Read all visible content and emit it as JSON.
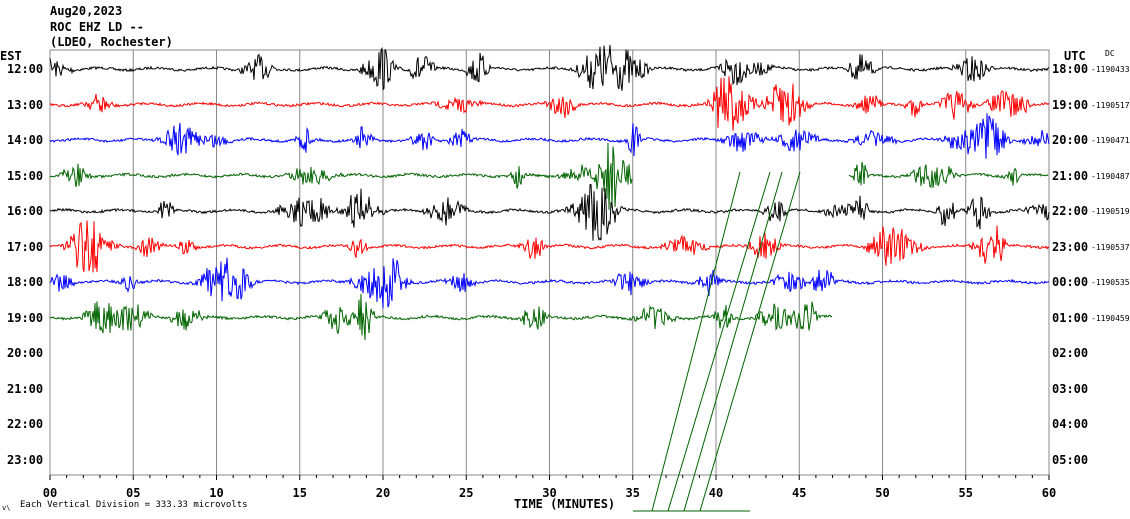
{
  "header": {
    "date": "Aug20,2023",
    "station": "ROC EHZ LD --",
    "network": "(LDEO, Rochester)"
  },
  "left_tz": "EST",
  "right_tz": "UTC",
  "dc_label": "DC",
  "footer": {
    "scale_text": "Each Vertical Division =  333.33 microvolts",
    "corner_mark": "v\\",
    "xlabel": "TIME (MINUTES)"
  },
  "chart_data": {
    "type": "line",
    "title": "ROC EHZ LD -- Aug20,2023",
    "xlabel": "TIME (MINUTES)",
    "xlim": [
      0,
      60
    ],
    "x_ticks": [
      "00",
      "05",
      "10",
      "15",
      "20",
      "25",
      "30",
      "35",
      "40",
      "45",
      "50",
      "55",
      "60"
    ],
    "grid": true,
    "colors": [
      "#000000",
      "#ff0000",
      "#0000ff",
      "#006400"
    ],
    "rows": [
      {
        "est": "12:00",
        "utc": "18:00",
        "dc": "-1190433",
        "end_min": 60
      },
      {
        "est": "13:00",
        "utc": "19:00",
        "dc": "-1190517",
        "end_min": 60
      },
      {
        "est": "14:00",
        "utc": "20:00",
        "dc": "-1190471",
        "end_min": 60
      },
      {
        "est": "15:00",
        "utc": "21:00",
        "dc": "-1190487",
        "end_min": 60,
        "gap": [
          35,
          48
        ]
      },
      {
        "est": "16:00",
        "utc": "22:00",
        "dc": "-1190519",
        "end_min": 60
      },
      {
        "est": "17:00",
        "utc": "23:00",
        "dc": "-1190537",
        "end_min": 60
      },
      {
        "est": "18:00",
        "utc": "00:00",
        "dc": "-1190535",
        "end_min": 60
      },
      {
        "est": "19:00",
        "utc": "01:00",
        "dc": "-1190459",
        "end_min": 47
      },
      {
        "est": "20:00",
        "utc": "02:00",
        "end_min": 0
      },
      {
        "est": "21:00",
        "utc": "03:00",
        "end_min": 0
      },
      {
        "est": "22:00",
        "utc": "04:00",
        "end_min": 0
      },
      {
        "est": "23:00",
        "utc": "05:00",
        "end_min": 0
      }
    ]
  }
}
